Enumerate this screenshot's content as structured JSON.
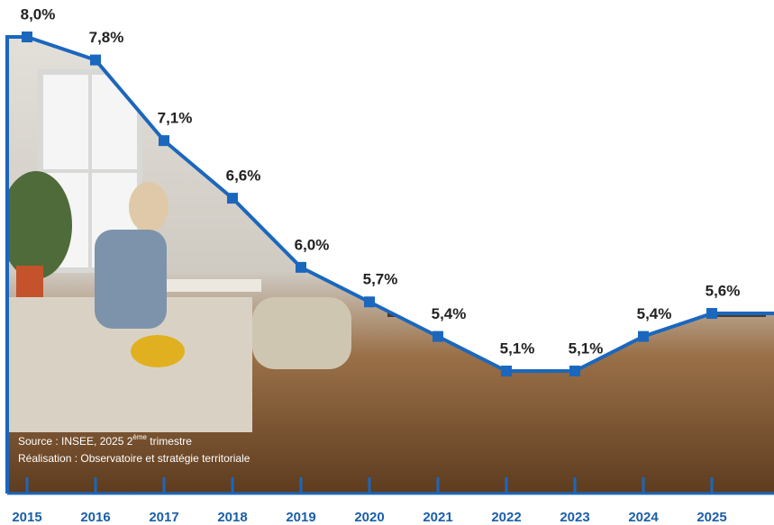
{
  "chart_data": {
    "type": "line",
    "categories": [
      "2015",
      "2016",
      "2017",
      "2018",
      "2019",
      "2020",
      "2021",
      "2022",
      "2023",
      "2024",
      "2025"
    ],
    "values": [
      8.0,
      7.8,
      7.1,
      6.6,
      6.0,
      5.7,
      5.4,
      5.1,
      5.1,
      5.4,
      5.6
    ],
    "value_labels": [
      "8,0%",
      "7,8%",
      "7,1%",
      "6,6%",
      "6,0%",
      "5,7%",
      "5,4%",
      "5,1%",
      "5,1%",
      "5,4%",
      "5,6%"
    ],
    "color": "#1b67bd",
    "source": {
      "prefix": "Source : INSEE, 2025 2",
      "sup": "ème",
      "suffix": " trimestre"
    },
    "credit": "Réalisation : Observatoire et stratégie territoriale"
  }
}
